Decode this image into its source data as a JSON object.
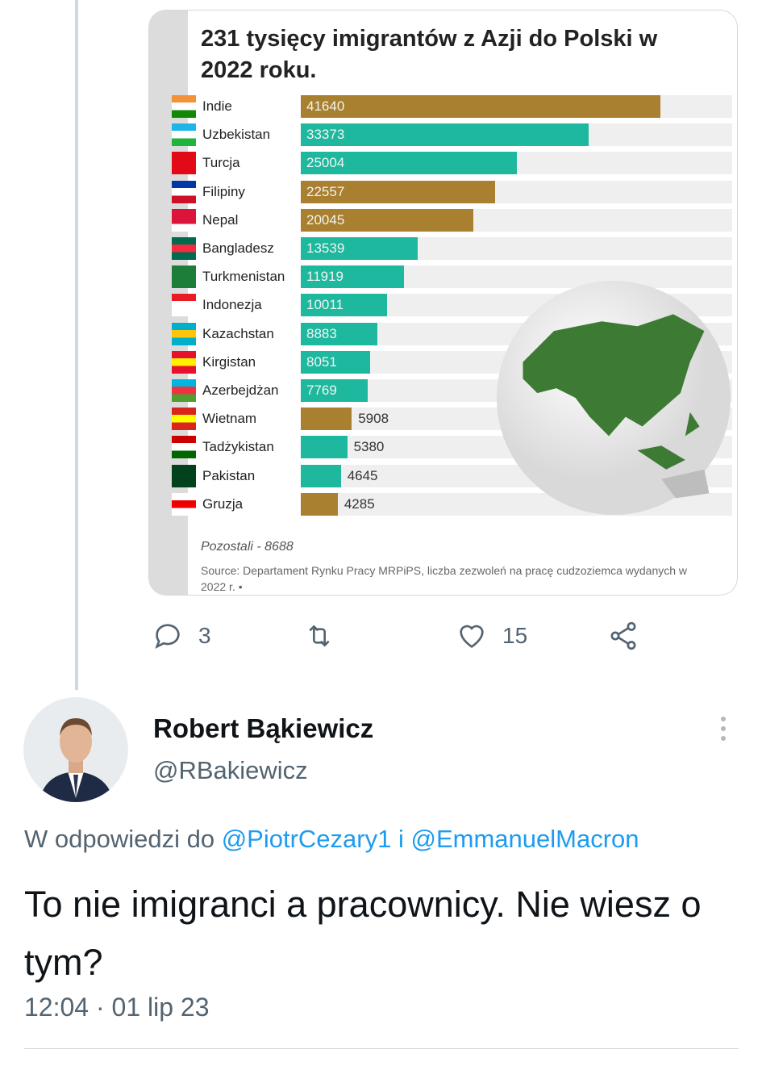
{
  "chart_data": {
    "type": "bar",
    "title": "231 tysięcy imigrantów z Azji do Polski w 2022 roku.",
    "categories": [
      "Indie",
      "Uzbekistan",
      "Turcja",
      "Filipiny",
      "Nepal",
      "Bangladesz",
      "Turkmenistan",
      "Indonezja",
      "Kazachstan",
      "Kirgistan",
      "Azerbejdżan",
      "Wietnam",
      "Tadżykistan",
      "Pakistan",
      "Gruzja"
    ],
    "values": [
      41640,
      33373,
      25004,
      22557,
      20045,
      13539,
      11919,
      10011,
      8883,
      8051,
      7769,
      5908,
      5380,
      4645,
      4285
    ],
    "bar_colors": [
      "gold",
      "teal",
      "teal",
      "gold",
      "gold",
      "teal",
      "teal",
      "teal",
      "teal",
      "teal",
      "teal",
      "gold",
      "teal",
      "teal",
      "gold"
    ],
    "flags": [
      [
        "#f4923a",
        "#fff",
        "#138808"
      ],
      [
        "#1eb5e6",
        "#fff",
        "#1eb53a"
      ],
      [
        "#e30a17",
        "#e30a17",
        "#e30a17"
      ],
      [
        "#0038a8",
        "#fff",
        "#ce1126"
      ],
      [
        "#dc143c",
        "#dc143c",
        "#fff"
      ],
      [
        "#006a4e",
        "#f42a41",
        "#006a4e"
      ],
      [
        "#1d7e3a",
        "#1d7e3a",
        "#1d7e3a"
      ],
      [
        "#e81c25",
        "#fff",
        "#fff"
      ],
      [
        "#00afca",
        "#fec50c",
        "#00afca"
      ],
      [
        "#e8112d",
        "#ffef00",
        "#e8112d"
      ],
      [
        "#00b5e2",
        "#ef3340",
        "#509e2f"
      ],
      [
        "#da251d",
        "#ffff00",
        "#da251d"
      ],
      [
        "#cc0000",
        "#fff",
        "#006600"
      ],
      [
        "#01411c",
        "#01411c",
        "#01411c"
      ],
      [
        "#fff",
        "#e00",
        "#fff"
      ]
    ],
    "xlim": [
      0,
      50000
    ],
    "annotation": "Pozostali - 8688",
    "source": "Source: Departament Rynku Pracy MRPiPS, liczba zezwoleń na pracę cudzoziemca wydanych w 2022 r. •"
  },
  "colors": {
    "gold": "#a8802f",
    "teal": "#1db89e",
    "track": "#efefef",
    "link": "#1d9bf0"
  },
  "actions": {
    "reply_count": "3",
    "retweet_count": "",
    "like_count": "15"
  },
  "reply": {
    "name": "Robert Bąkiewicz",
    "handle": "@RBakiewicz",
    "reply_prefix": "W odpowiedzi do",
    "mention1": "@PiotrCezary1",
    "conj": "i",
    "mention2": "@EmmanuelMacron",
    "text": "To nie imigranci a pracownicy. Nie wiesz o tym?",
    "timestamp": "12:04 · 01 lip 23"
  }
}
